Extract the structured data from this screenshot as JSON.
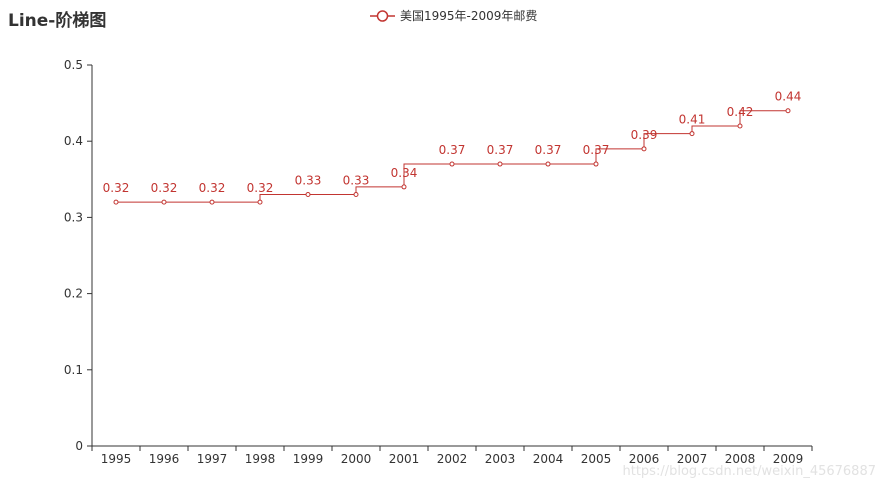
{
  "chart_data": {
    "type": "line",
    "step": true,
    "title": "Line-阶梯图",
    "legend_position": "top-center",
    "categories": [
      "1995",
      "1996",
      "1997",
      "1998",
      "1999",
      "2000",
      "2001",
      "2002",
      "2003",
      "2004",
      "2005",
      "2006",
      "2007",
      "2008",
      "2009"
    ],
    "series": [
      {
        "name": "美国1995年-2009年邮费",
        "values": [
          0.32,
          0.32,
          0.32,
          0.32,
          0.33,
          0.33,
          0.34,
          0.37,
          0.37,
          0.37,
          0.37,
          0.39,
          0.41,
          0.42,
          0.44
        ],
        "color": "#c23531"
      }
    ],
    "ylim": [
      0,
      0.5
    ],
    "yticks": [
      "0",
      "0.1",
      "0.2",
      "0.3",
      "0.4",
      "0.5"
    ],
    "grid": false,
    "xlabel": "",
    "ylabel": ""
  },
  "watermark": "https://blog.csdn.net/weixin_45676887"
}
